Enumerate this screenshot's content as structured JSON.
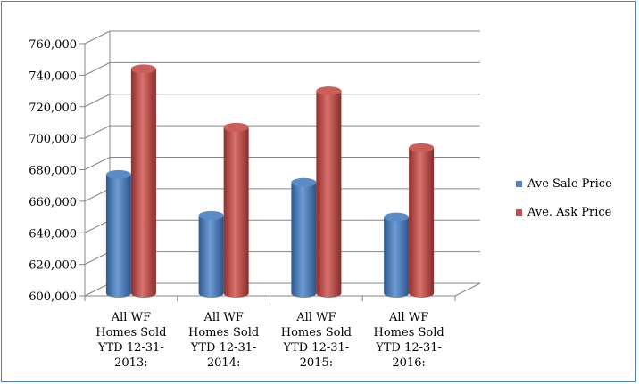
{
  "chart_data": {
    "type": "bar",
    "style": "3d-cylinder",
    "categories": [
      [
        "All WF",
        "Homes Sold",
        "YTD 12-31-",
        "2013:"
      ],
      [
        "All WF",
        "Homes Sold",
        "YTD 12-31-",
        "2014:"
      ],
      [
        "All WF",
        "Homes Sold",
        "YTD 12-31-",
        "2015:"
      ],
      [
        "All WF",
        "Homes Sold",
        "YTD 12-31-",
        "2016:"
      ]
    ],
    "series": [
      {
        "name": "Ave Sale Price",
        "color": "#4f81bd",
        "values": [
          673000,
          647000,
          668000,
          646000
        ]
      },
      {
        "name": "Ave. Ask Price",
        "color": "#c0504d",
        "values": [
          740000,
          703000,
          726000,
          690000
        ]
      }
    ],
    "ylim": [
      600000,
      760000
    ],
    "yticks": [
      "600,000",
      "620,000",
      "640,000",
      "660,000",
      "680,000",
      "700,000",
      "720,000",
      "740,000",
      "760,000"
    ],
    "grid": true,
    "legend_position": "right"
  }
}
